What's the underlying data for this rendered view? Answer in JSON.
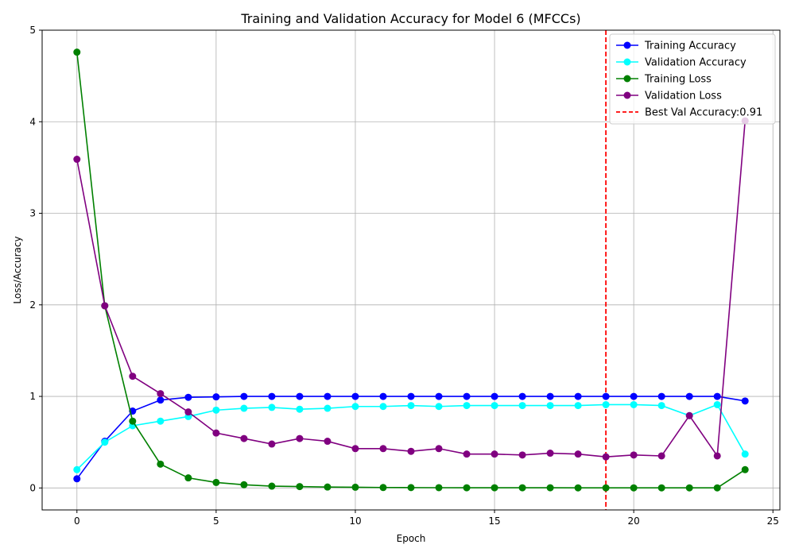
{
  "chart_data": {
    "type": "line",
    "title": "Training and Validation Accuracy for Model 6 (MFCCs)",
    "xlabel": "Epoch",
    "ylabel": "Loss/Accuracy",
    "xlim": [
      -1.25,
      25.25
    ],
    "ylim": [
      -0.24,
      5.0
    ],
    "xticks": [
      0,
      5,
      10,
      15,
      20,
      25
    ],
    "yticks": [
      0,
      1,
      2,
      3,
      4,
      5
    ],
    "grid": true,
    "legend_position": "top-right",
    "x": [
      0,
      1,
      2,
      3,
      4,
      5,
      6,
      7,
      8,
      9,
      10,
      11,
      12,
      13,
      14,
      15,
      16,
      17,
      18,
      19,
      20,
      21,
      22,
      23,
      24
    ],
    "series": [
      {
        "name": "Training Accuracy",
        "color": "#0000ff",
        "values": [
          0.1,
          0.51,
          0.84,
          0.96,
          0.99,
          0.995,
          1.0,
          1.0,
          1.0,
          1.0,
          1.0,
          1.0,
          1.0,
          1.0,
          1.0,
          1.0,
          1.0,
          1.0,
          1.0,
          1.0,
          1.0,
          1.0,
          1.0,
          1.0,
          0.95
        ]
      },
      {
        "name": "Validation Accuracy",
        "color": "#00ffff",
        "values": [
          0.2,
          0.5,
          0.68,
          0.73,
          0.78,
          0.85,
          0.87,
          0.88,
          0.86,
          0.87,
          0.89,
          0.89,
          0.9,
          0.89,
          0.9,
          0.9,
          0.9,
          0.9,
          0.9,
          0.91,
          0.91,
          0.9,
          0.79,
          0.91,
          0.37
        ]
      },
      {
        "name": "Training Loss",
        "color": "#008000",
        "values": [
          4.76,
          1.99,
          0.73,
          0.26,
          0.11,
          0.06,
          0.035,
          0.02,
          0.015,
          0.01,
          0.008,
          0.005,
          0.004,
          0.003,
          0.002,
          0.002,
          0.002,
          0.002,
          0.001,
          0.001,
          0.001,
          0.001,
          0.001,
          0.001,
          0.2
        ]
      },
      {
        "name": "Validation Loss",
        "color": "#800080",
        "values": [
          3.59,
          1.99,
          1.22,
          1.03,
          0.83,
          0.6,
          0.54,
          0.48,
          0.54,
          0.51,
          0.43,
          0.43,
          0.4,
          0.43,
          0.37,
          0.37,
          0.36,
          0.38,
          0.37,
          0.34,
          0.36,
          0.35,
          0.79,
          0.35,
          4.01
        ]
      }
    ],
    "reference_line": {
      "name": "Best Val Accuracy:0.91",
      "x": 19,
      "color": "#ff0000",
      "style": "dashed"
    }
  }
}
